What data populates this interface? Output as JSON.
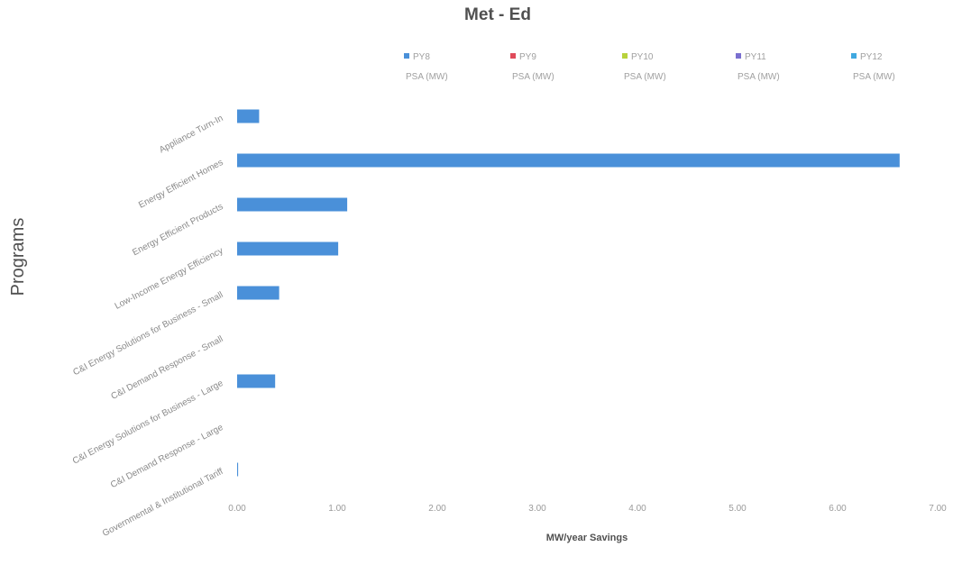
{
  "chart_data": {
    "type": "bar",
    "orientation": "horizontal",
    "title": "Met - Ed",
    "xlabel": "MW/year Savings",
    "ylabel": "Programs",
    "xlim": [
      0,
      7
    ],
    "xticks": [
      "0.00",
      "1.00",
      "2.00",
      "3.00",
      "4.00",
      "5.00",
      "6.00",
      "7.00"
    ],
    "grid": false,
    "legend_position": "top",
    "categories": [
      "Appliance Turn-In",
      "Energy Efficient Homes",
      "Energy Efficient Products",
      "Low-Income Energy Efficiency",
      "C&I Energy Solutions for Business - Small",
      "C&I Demand Response - Small",
      "C&I Energy Solutions for Business - Large",
      "C&I Demand Response - Large",
      "Governmental & Institutional Tariff"
    ],
    "series": [
      {
        "name": "PY8",
        "sub": "PSA (MW)",
        "color": "#4a90d9",
        "values": [
          0.22,
          6.62,
          1.1,
          1.01,
          0.42,
          0,
          0.38,
          0,
          0.01
        ]
      },
      {
        "name": "PY9",
        "sub": "PSA (MW)",
        "color": "#e04a5a",
        "values": [
          0,
          0,
          0,
          0,
          0,
          0,
          0,
          0,
          0
        ]
      },
      {
        "name": "PY10",
        "sub": "PSA (MW)",
        "color": "#b8d23c",
        "values": [
          0,
          0,
          0,
          0,
          0,
          0,
          0,
          0,
          0
        ]
      },
      {
        "name": "PY11",
        "sub": "PSA (MW)",
        "color": "#7a6fd0",
        "values": [
          0,
          0,
          0,
          0,
          0,
          0,
          0,
          0,
          0
        ]
      },
      {
        "name": "PY12",
        "sub": "PSA (MW)",
        "color": "#3fa8e0",
        "values": [
          0,
          0,
          0,
          0,
          0,
          0,
          0,
          0,
          0
        ]
      }
    ]
  }
}
